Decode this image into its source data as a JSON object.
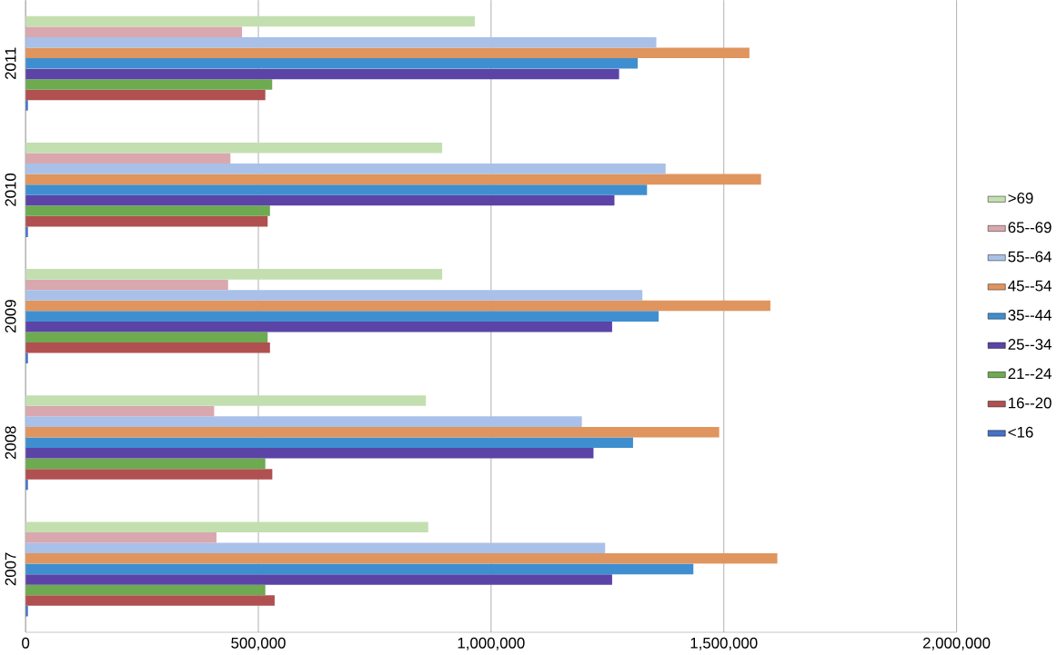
{
  "chart_data": {
    "type": "bar",
    "orientation": "horizontal",
    "categories": [
      "2011",
      "2010",
      "2009",
      "2008",
      "2007"
    ],
    "series": [
      {
        "name": ">69",
        "color": "#c3dfb0",
        "values": [
          965000,
          895000,
          895000,
          860000,
          865000
        ]
      },
      {
        "name": "65--69",
        "color": "#d9a7ae",
        "values": [
          465000,
          440000,
          435000,
          405000,
          410000
        ]
      },
      {
        "name": "55--64",
        "color": "#a9c0e8",
        "values": [
          1355000,
          1375000,
          1325000,
          1195000,
          1245000
        ]
      },
      {
        "name": "45--54",
        "color": "#e0955e",
        "values": [
          1555000,
          1580000,
          1600000,
          1490000,
          1615000
        ]
      },
      {
        "name": "35--44",
        "color": "#3f8fd0",
        "values": [
          1315000,
          1335000,
          1360000,
          1305000,
          1435000
        ]
      },
      {
        "name": "25--34",
        "color": "#5b44a6",
        "values": [
          1275000,
          1265000,
          1260000,
          1220000,
          1260000
        ]
      },
      {
        "name": "21--24",
        "color": "#6eaa50",
        "values": [
          530000,
          525000,
          520000,
          515000,
          515000
        ]
      },
      {
        "name": "16--20",
        "color": "#b05050",
        "values": [
          515000,
          520000,
          525000,
          530000,
          535000
        ]
      },
      {
        "name": "<16",
        "color": "#4472c4",
        "values": [
          5000,
          5000,
          5000,
          5000,
          5000
        ]
      }
    ],
    "xlim": [
      0,
      2000000
    ],
    "xticks": [
      {
        "value": 0,
        "label": "0"
      },
      {
        "value": 500000,
        "label": "500,000"
      },
      {
        "value": 1000000,
        "label": "1,000,000"
      },
      {
        "value": 1500000,
        "label": "1,500,000"
      },
      {
        "value": 2000000,
        "label": "2,000,000"
      }
    ],
    "grid": "x",
    "legend": "right"
  }
}
